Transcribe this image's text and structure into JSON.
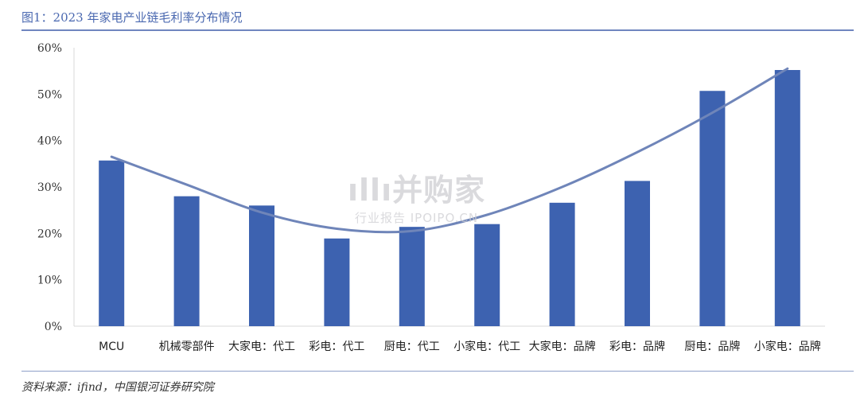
{
  "header": {
    "title": "图1：2023 年家电产业链毛利率分布情况"
  },
  "footer": {
    "source": "资料来源：ifind，中国银河证券研究院"
  },
  "watermark": {
    "main": "ıllı并购家",
    "sub": "行业报告 IPOIPO.CN"
  },
  "colors": {
    "bar": "#3d62b0",
    "line": "#6f85b9",
    "title": "#4a68b0",
    "axis": "#d9d9d9"
  },
  "chart_data": {
    "type": "bar",
    "categories": [
      "MCU",
      "机械零部件",
      "大家电：代工",
      "彩电：代工",
      "厨电：代工",
      "小家电：代工",
      "大家电：品牌",
      "彩电：品牌",
      "厨电：品牌",
      "小家电：品牌"
    ],
    "series": [
      {
        "values": [
          35.7,
          28.0,
          26.0,
          18.9,
          21.4,
          22.0,
          26.6,
          31.3,
          50.7,
          55.2
        ]
      }
    ],
    "trendline": {
      "type": "polynomial",
      "values": [
        36.5,
        30.5,
        24.5,
        21.0,
        20.5,
        24.0,
        30.0,
        37.5,
        46.0,
        55.5
      ]
    },
    "y_ticks": [
      "0%",
      "10%",
      "20%",
      "30%",
      "40%",
      "50%",
      "60%"
    ],
    "ylim": [
      0,
      60
    ],
    "grid": false,
    "legend": "none",
    "title": "",
    "xlabel": "",
    "ylabel": ""
  }
}
